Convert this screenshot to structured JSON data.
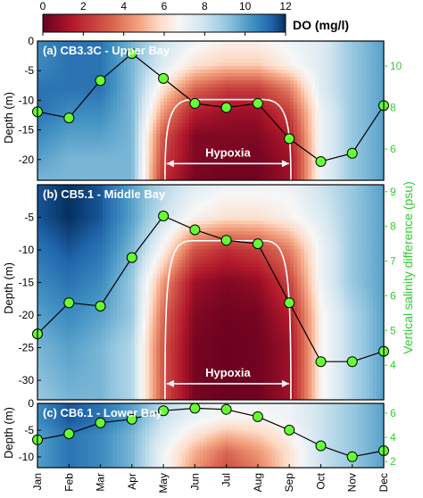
{
  "colorbar": {
    "label": "DO (mg/l)",
    "ticks": [
      "0",
      "2",
      "4",
      "6",
      "8",
      "10",
      "12"
    ],
    "min": 0,
    "max": 12
  },
  "colors": {
    "low": "#67001f",
    "mid": "#f7f7f7",
    "high": "#053061",
    "salinity": "#33cc33",
    "hypoxia_contour": "#ffffff"
  },
  "axes": {
    "left_label": "Depth (m)",
    "right_label": "Vertical salinity difference (psu)",
    "months": [
      "Jan",
      "Feb",
      "Mar",
      "Apr",
      "May",
      "Jun",
      "Jul",
      "Aug",
      "Sep",
      "Oct",
      "Nov",
      "Dec"
    ]
  },
  "chart_data": [
    {
      "type": "heatmap",
      "title": "(a) CB3.3C - Upper Bay",
      "annotation": "Hypoxia",
      "depth_range": [
        -23.5,
        0
      ],
      "depth_ticks": [
        "0",
        "-5",
        "-10",
        "-15",
        "-20"
      ],
      "depth_tick_values": [
        0,
        -5,
        -10,
        -15,
        -20
      ],
      "salinity_range": [
        4.5,
        11.2
      ],
      "salinity_ticks": [
        "6",
        "8",
        "10"
      ],
      "salinity_tick_values": [
        6,
        8,
        10
      ],
      "salinity_series": {
        "x": [
          "Jan",
          "Feb",
          "Mar",
          "Apr",
          "May",
          "Jun",
          "Jul",
          "Aug",
          "Sep",
          "Oct",
          "Nov",
          "Dec"
        ],
        "values": [
          7.8,
          7.5,
          9.3,
          10.6,
          9.4,
          8.2,
          8.0,
          8.2,
          6.5,
          5.4,
          5.8,
          8.1
        ]
      },
      "hypoxia_span": [
        "May",
        "Sep"
      ],
      "do_depth_levels": [
        0,
        4,
        8,
        12,
        16,
        20,
        23.5
      ],
      "do_profiles": [
        [
          10.5,
          10.5,
          11.0,
          11.0,
          10.5,
          10.0,
          9.5
        ],
        [
          11.0,
          11.0,
          11.0,
          10.5,
          10.0,
          9.5,
          9.5
        ],
        [
          11.0,
          11.0,
          11.0,
          10.5,
          10.0,
          9.5,
          9.5
        ],
        [
          9.5,
          9.5,
          9.5,
          9.5,
          9.5,
          9.5,
          9.5
        ],
        [
          8.0,
          7.5,
          6.0,
          4.5,
          3.0,
          2.5,
          2.0
        ],
        [
          7.0,
          6.0,
          3.5,
          1.5,
          0.5,
          0.5,
          0.3
        ],
        [
          6.5,
          5.5,
          2.5,
          1.0,
          0.5,
          0.3,
          0.2
        ],
        [
          6.5,
          5.5,
          2.5,
          1.0,
          0.5,
          0.3,
          0.2
        ],
        [
          7.0,
          6.5,
          4.0,
          2.5,
          1.5,
          1.0,
          1.0
        ],
        [
          7.5,
          7.5,
          7.5,
          7.0,
          7.0,
          7.0,
          7.0
        ],
        [
          9.0,
          9.0,
          9.0,
          9.0,
          9.0,
          9.0,
          9.0
        ],
        [
          10.0,
          10.0,
          10.0,
          10.0,
          10.0,
          10.0,
          10.0
        ]
      ]
    },
    {
      "type": "heatmap",
      "title": "(b) CB5.1 - Middle Bay",
      "annotation": "Hypoxia",
      "depth_range": [
        -33,
        0
      ],
      "depth_ticks": [
        "-5",
        "-10",
        "-15",
        "-20",
        "-25",
        "-30"
      ],
      "depth_tick_values": [
        -5,
        -10,
        -15,
        -20,
        -25,
        -30
      ],
      "salinity_range": [
        3,
        9.2
      ],
      "salinity_ticks": [
        "4",
        "5",
        "6",
        "7",
        "8",
        "9"
      ],
      "salinity_tick_values": [
        4,
        5,
        6,
        7,
        8,
        9
      ],
      "salinity_series": {
        "x": [
          "Jan",
          "Feb",
          "Mar",
          "Apr",
          "May",
          "Jun",
          "Jul",
          "Aug",
          "Sep",
          "Oct",
          "Nov",
          "Dec"
        ],
        "values": [
          4.9,
          5.8,
          5.7,
          7.1,
          8.3,
          7.9,
          7.6,
          7.5,
          5.8,
          4.1,
          4.1,
          4.4
        ]
      },
      "hypoxia_span": [
        "May",
        "Sep"
      ],
      "do_depth_levels": [
        0,
        5,
        10,
        15,
        20,
        25,
        33
      ],
      "do_profiles": [
        [
          11.5,
          11.5,
          11.0,
          10.5,
          10.0,
          9.5,
          9.0
        ],
        [
          12.0,
          12.0,
          11.5,
          11.0,
          10.5,
          10.0,
          9.5
        ],
        [
          11.5,
          11.5,
          11.0,
          10.5,
          10.0,
          9.5,
          9.5
        ],
        [
          10.0,
          10.0,
          9.5,
          9.0,
          9.0,
          8.5,
          8.5
        ],
        [
          8.5,
          8.0,
          6.5,
          4.5,
          3.5,
          3.0,
          3.0
        ],
        [
          7.5,
          6.5,
          3.0,
          1.0,
          0.5,
          0.3,
          0.3
        ],
        [
          7.0,
          6.0,
          2.0,
          0.5,
          0.2,
          0.1,
          0.1
        ],
        [
          7.0,
          6.0,
          2.5,
          0.8,
          0.3,
          0.2,
          0.2
        ],
        [
          7.0,
          6.5,
          4.0,
          2.5,
          1.5,
          1.0,
          1.0
        ],
        [
          8.0,
          7.5,
          7.0,
          7.0,
          6.5,
          6.5,
          6.5
        ],
        [
          9.0,
          9.0,
          9.0,
          9.0,
          8.5,
          8.5,
          8.5
        ],
        [
          10.0,
          10.0,
          10.0,
          10.0,
          10.0,
          10.0,
          10.0
        ]
      ]
    },
    {
      "type": "heatmap",
      "title": "(c) CB6.1 - Lower Bay",
      "depth_range": [
        -12,
        0
      ],
      "depth_ticks": [
        "0",
        "-5",
        "-10"
      ],
      "depth_tick_values": [
        0,
        -5,
        -10
      ],
      "salinity_range": [
        1.5,
        6.8
      ],
      "salinity_ticks": [
        "2",
        "4",
        "6"
      ],
      "salinity_tick_values": [
        2,
        4,
        6
      ],
      "salinity_series": {
        "x": [
          "Jan",
          "Feb",
          "Mar",
          "Apr",
          "May",
          "Jun",
          "Jul",
          "Aug",
          "Sep",
          "Oct",
          "Nov",
          "Dec"
        ],
        "values": [
          3.8,
          4.3,
          5.2,
          5.5,
          6.2,
          6.4,
          6.3,
          5.7,
          4.6,
          3.3,
          2.4,
          2.9
        ]
      },
      "do_depth_levels": [
        0,
        3,
        6,
        9,
        12
      ],
      "do_profiles": [
        [
          10.5,
          10.5,
          10.0,
          10.0,
          10.0
        ],
        [
          11.5,
          11.5,
          11.0,
          11.0,
          11.0
        ],
        [
          11.0,
          11.0,
          10.5,
          10.5,
          10.5
        ],
        [
          10.0,
          10.0,
          9.5,
          9.5,
          9.5
        ],
        [
          8.5,
          8.0,
          7.5,
          7.0,
          7.0
        ],
        [
          7.5,
          7.0,
          6.0,
          5.0,
          4.5
        ],
        [
          7.0,
          6.5,
          5.0,
          3.5,
          3.0
        ],
        [
          7.0,
          6.5,
          5.5,
          4.5,
          4.0
        ],
        [
          7.0,
          7.0,
          6.5,
          6.0,
          6.0
        ],
        [
          8.0,
          8.0,
          8.0,
          8.0,
          8.0
        ],
        [
          9.0,
          9.0,
          9.0,
          9.0,
          9.0
        ],
        [
          10.0,
          10.0,
          10.0,
          10.0,
          10.0
        ]
      ]
    }
  ]
}
